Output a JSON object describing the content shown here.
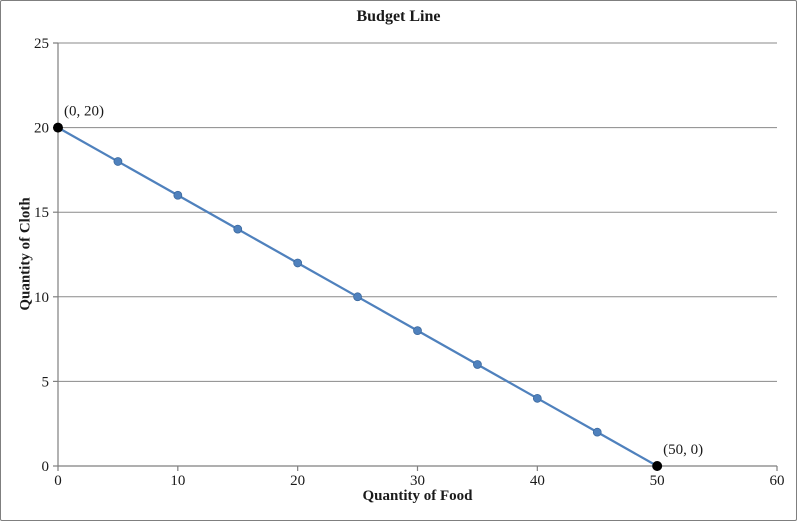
{
  "window": {
    "background": "#FFFFFF",
    "frame_border_color": "#7F7F7F"
  },
  "chart_data": {
    "type": "line",
    "title": "Budget Line",
    "xlabel": "Quantity of Food",
    "ylabel": "Quantity of Cloth",
    "x": [
      0,
      5,
      10,
      15,
      20,
      25,
      30,
      35,
      40,
      45,
      50
    ],
    "y": [
      20,
      18,
      16,
      14,
      12,
      10,
      8,
      6,
      4,
      2,
      0
    ],
    "xlim": [
      0,
      60
    ],
    "ylim": [
      0,
      25
    ],
    "xticks": [
      0,
      10,
      20,
      30,
      40,
      50,
      60
    ],
    "yticks": [
      0,
      5,
      10,
      15,
      20,
      25
    ],
    "grid": "horizontal-only",
    "legend": "none",
    "endpoint_indices": [
      0,
      10
    ],
    "annotations": [
      {
        "text": "(0, 20)",
        "x": 0,
        "y": 20
      },
      {
        "text": "(50, 0)",
        "x": 50,
        "y": 0
      }
    ],
    "colors": {
      "line": "#4F81BD",
      "marker": "#4F81BD",
      "marker_edge": "#3A679C",
      "endpoint": "#000000",
      "gridline": "#8A8A8A",
      "axis": "#7F7F7F",
      "text": "#1A1A1A"
    }
  }
}
